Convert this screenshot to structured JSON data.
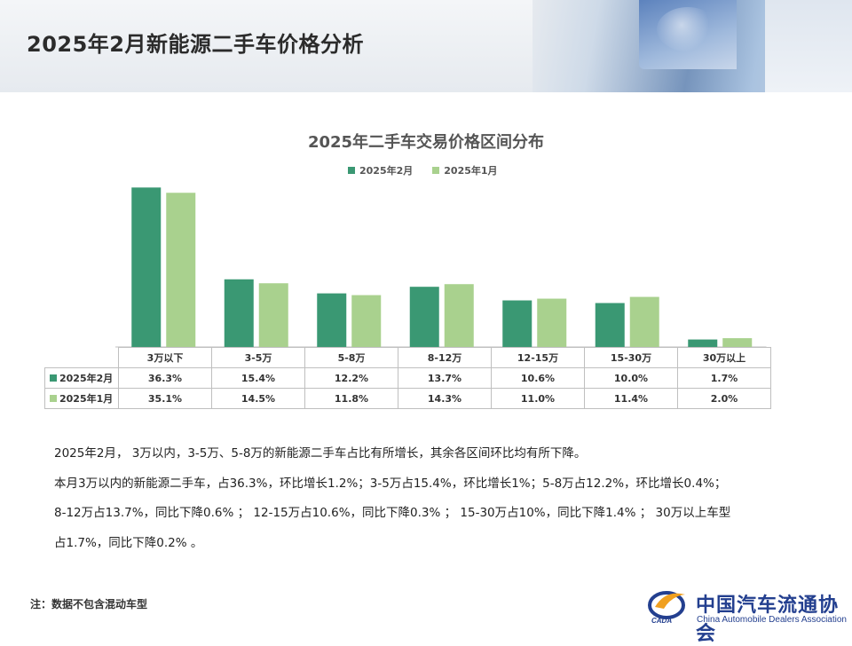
{
  "page": {
    "title": "2025年2月新能源二手车价格分析",
    "footnote": "注：数据不包含混动车型"
  },
  "colors": {
    "feb": "#3a9873",
    "jan": "#a9d18e"
  },
  "chart_data": {
    "type": "bar",
    "title": "2025年二手车交易价格区间分布",
    "categories": [
      "3万以下",
      "3-5万",
      "5-8万",
      "8-12万",
      "12-15万",
      "15-30万",
      "30万以上"
    ],
    "series": [
      {
        "name": "2025年2月",
        "values": [
          36.3,
          15.4,
          12.2,
          13.7,
          10.6,
          10.0,
          1.7
        ],
        "labels": [
          "36.3%",
          "15.4%",
          "12.2%",
          "13.7%",
          "10.6%",
          "10.0%",
          "1.7%"
        ]
      },
      {
        "name": "2025年1月",
        "values": [
          35.1,
          14.5,
          11.8,
          14.3,
          11.0,
          11.4,
          2.0
        ],
        "labels": [
          "35.1%",
          "14.5%",
          "11.8%",
          "14.3%",
          "11.0%",
          "11.4%",
          "2.0%"
        ]
      }
    ],
    "ylim": [
      0,
      40
    ],
    "legend": "top-center",
    "grid": false
  },
  "notes": [
    "2025年2月， 3万以内，3-5万、5-8万的新能源二手车占比有所增长，其余各区间环比均有所下降。",
    "本月3万以内的新能源二手车，占36.3%，环比增长1.2%；3-5万占15.4%，环比增长1%；5-8万占12.2%，环比增长0.4%；",
    "8-12万占13.7%，同比下降0.6% ； 12-15万占10.6%，同比下降0.3% ； 15-30万占10%，同比下降1.4% ；  30万以上车型",
    "占1.7%，同比下降0.2% 。"
  ],
  "logo": {
    "name_cn": "中国汽车流通协会",
    "name_en": "China Automobile Dealers Association",
    "mark_text": "CADA"
  }
}
